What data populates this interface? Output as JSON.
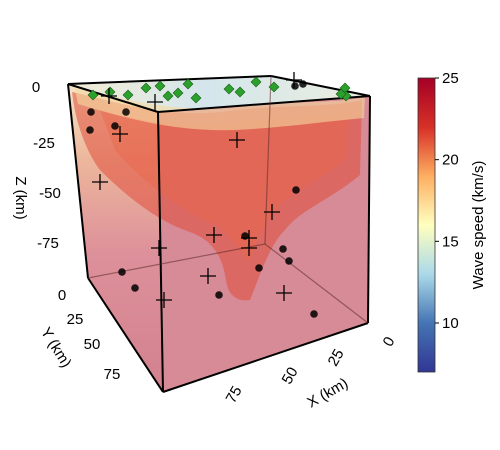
{
  "chart_data": {
    "type": "scatter",
    "subtype": "3d-volume",
    "axes": {
      "x": {
        "label": "X (km)",
        "ticks": [
          "0",
          "25",
          "50",
          "75"
        ]
      },
      "y": {
        "label": "Y (km)",
        "ticks": [
          "0",
          "25",
          "50",
          "75"
        ]
      },
      "z": {
        "label": "Z (km)",
        "ticks": [
          "0",
          "-25",
          "-50",
          "-75"
        ]
      }
    },
    "colorbar": {
      "label": "Wave speed (km/s)",
      "ticks": [
        "25",
        "20",
        "15",
        "10"
      ],
      "range": [
        7,
        25
      ],
      "colors": [
        "#313695",
        "#4575b4",
        "#abd9e9",
        "#ffffbf",
        "#fdae61",
        "#d73027",
        "#a50026"
      ]
    },
    "series": [
      {
        "marker": "diamond",
        "color": "#2ca02c",
        "location": "surface",
        "count": 14
      },
      {
        "marker": "circle",
        "color": "#000000",
        "location": "subsurface",
        "count": 16
      },
      {
        "marker": "cross",
        "color": "#000000",
        "location": "subsurface",
        "count": 14
      }
    ],
    "colors": {
      "volume": "#d9848f",
      "surface_high": "#cfe3ea",
      "anomaly": "#e04d3a"
    },
    "grid": false,
    "legend": "none"
  }
}
